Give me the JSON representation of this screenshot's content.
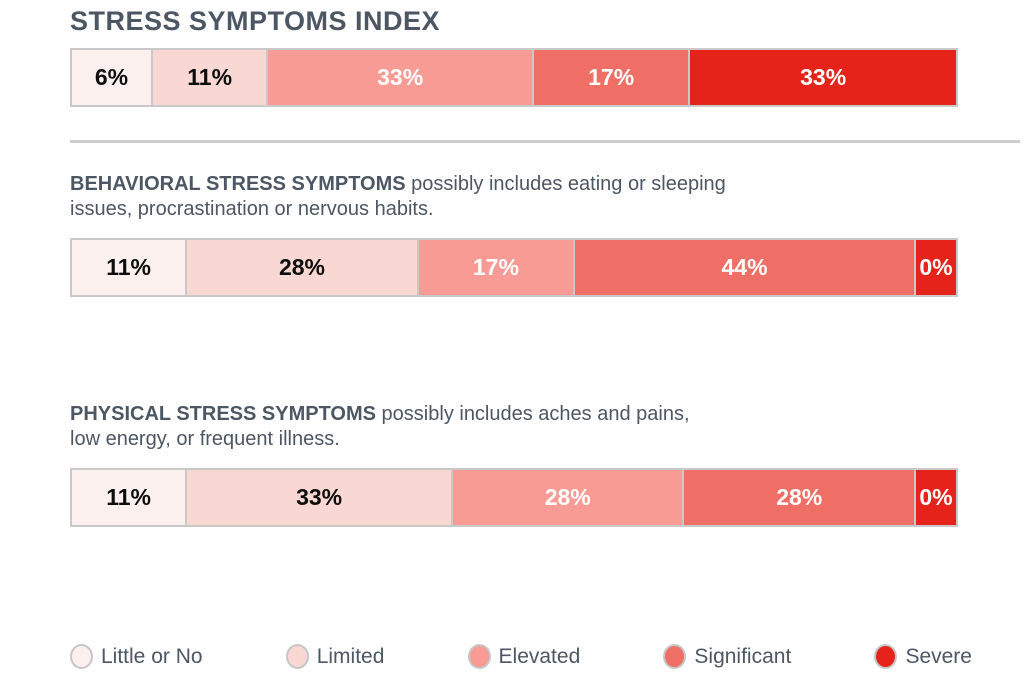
{
  "title": "STRESS SYMPTOMS INDEX",
  "colors": {
    "heading_text": "#4c5763",
    "bar_border": "#c9c9c9",
    "divider": "#cdcdcd",
    "page_background": "#ffffff"
  },
  "sections": [
    {
      "heading_bold": "BEHAVIORAL STRESS SYMPTOMS",
      "desc_line1": " possibly includes eating or sleeping",
      "desc_line2": "issues, procrastination or nervous habits."
    },
    {
      "heading_bold": "PHYSICAL STRESS SYMPTOMS",
      "desc_line1": " possibly includes aches and pains,",
      "desc_line2": "low energy, or frequent illness."
    }
  ],
  "chart_data": {
    "type": "bar",
    "subtype": "horizontal-stacked-100percent",
    "unit": "%",
    "title": "STRESS SYMPTOMS INDEX",
    "legend_position": "bottom",
    "levels": [
      {
        "name": "Little or No",
        "color": "#fcf0ee",
        "text_color": "#0d0d0d"
      },
      {
        "name": "Limited",
        "color": "#f9d8d3",
        "text_color": "#0d0d0d"
      },
      {
        "name": "Elevated",
        "color": "#f79b94",
        "text_color": "#ffffff"
      },
      {
        "name": "Significant",
        "color": "#ef6f66",
        "text_color": "#ffffff"
      },
      {
        "name": "Severe",
        "color": "#e6231b",
        "text_color": "#ffffff"
      }
    ],
    "bars": [
      {
        "name": "Stress Symptoms Index",
        "values": [
          6,
          11,
          33,
          17,
          33
        ]
      },
      {
        "name": "Behavioral Stress Symptoms",
        "values": [
          11,
          28,
          17,
          44,
          0
        ]
      },
      {
        "name": "Physical Stress Symptoms",
        "values": [
          11,
          33,
          28,
          28,
          0
        ]
      }
    ],
    "legend": [
      "Little or No",
      "Limited",
      "Elevated",
      "Significant",
      "Severe"
    ]
  }
}
